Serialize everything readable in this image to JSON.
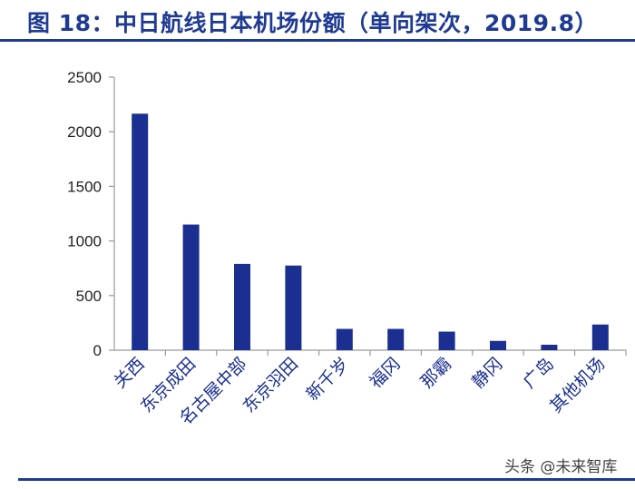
{
  "header": {
    "title": "图 18：中日航线日本机场份额（单向架次，2019.8）"
  },
  "watermark": {
    "text": "头条 @未来智库"
  },
  "colors": {
    "accent": "#1f3a93",
    "bar": "#1a2f8f"
  },
  "chart_data": {
    "type": "bar",
    "categories": [
      "关西",
      "东京成田",
      "名古屋中部",
      "东京羽田",
      "新千岁",
      "福冈",
      "那霸",
      "静冈",
      "广岛",
      "其他机场"
    ],
    "values": [
      2165,
      1150,
      790,
      775,
      195,
      195,
      170,
      85,
      50,
      235
    ],
    "yticks": [
      0,
      500,
      1000,
      1500,
      2000,
      2500
    ],
    "ylim": [
      0,
      2500
    ],
    "title": "",
    "xlabel": "",
    "ylabel": "",
    "grid": false
  }
}
